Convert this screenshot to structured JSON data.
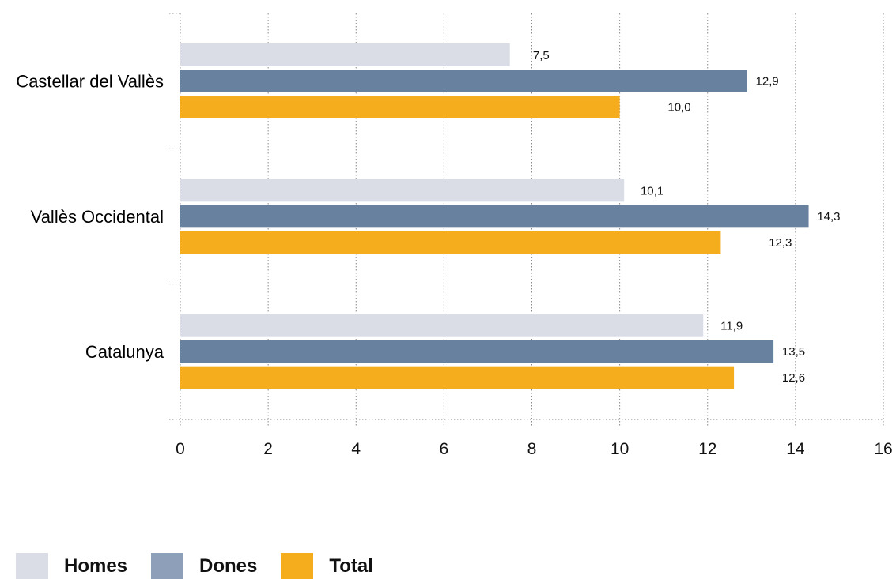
{
  "chart_data": {
    "type": "bar",
    "orientation": "horizontal",
    "categories": [
      "Castellar del Vallès",
      "Vallès Occidental",
      "Catalunya"
    ],
    "series": [
      {
        "name": "Homes",
        "values": [
          7.5,
          10.1,
          11.9
        ],
        "labels": [
          "7,5",
          "10,1",
          "11,9"
        ],
        "color": "#dadde6"
      },
      {
        "name": "Dones",
        "values": [
          12.9,
          14.3,
          13.5
        ],
        "labels": [
          "12,9",
          "14,3",
          "13,5"
        ],
        "color": "#68819f"
      },
      {
        "name": "Total",
        "values": [
          10.0,
          12.3,
          12.6
        ],
        "labels": [
          "10,0",
          "12,3",
          "12,6"
        ],
        "color": "#f5ad1e"
      }
    ],
    "xlim": [
      0,
      16
    ],
    "xticks": [
      "0",
      "2",
      "4",
      "6",
      "8",
      "10",
      "12",
      "14",
      "16"
    ],
    "grid": "vertical dotted",
    "legend_position": "bottom-left"
  },
  "legend": {
    "items": [
      {
        "label": "Homes",
        "color": "#dadde6"
      },
      {
        "label": "Dones",
        "color": "#8d9fb9"
      },
      {
        "label": "Total",
        "color": "#f5ad1e"
      }
    ]
  }
}
